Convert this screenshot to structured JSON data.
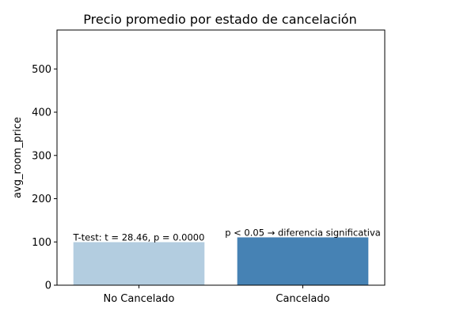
{
  "chart_data": {
    "type": "bar",
    "title": "Precio promedio por estado de cancelación",
    "xlabel": "",
    "ylabel": "avg_room_price",
    "categories": [
      "No Cancelado",
      "Cancelado"
    ],
    "values": [
      99.5,
      110.6
    ],
    "bar_colors": [
      "#b3cde0",
      "#4682b4"
    ],
    "ylim": [
      0,
      590
    ],
    "yticks": [
      0,
      100,
      200,
      300,
      400,
      500
    ],
    "grid": false,
    "annotations": [
      {
        "text": "T-test: t = 28.46, p = 0.0000",
        "x": 0.5,
        "y": 101
      },
      {
        "text": "p < 0.05 → diferencia significativa",
        "x": 1.5,
        "y": 112
      }
    ]
  }
}
